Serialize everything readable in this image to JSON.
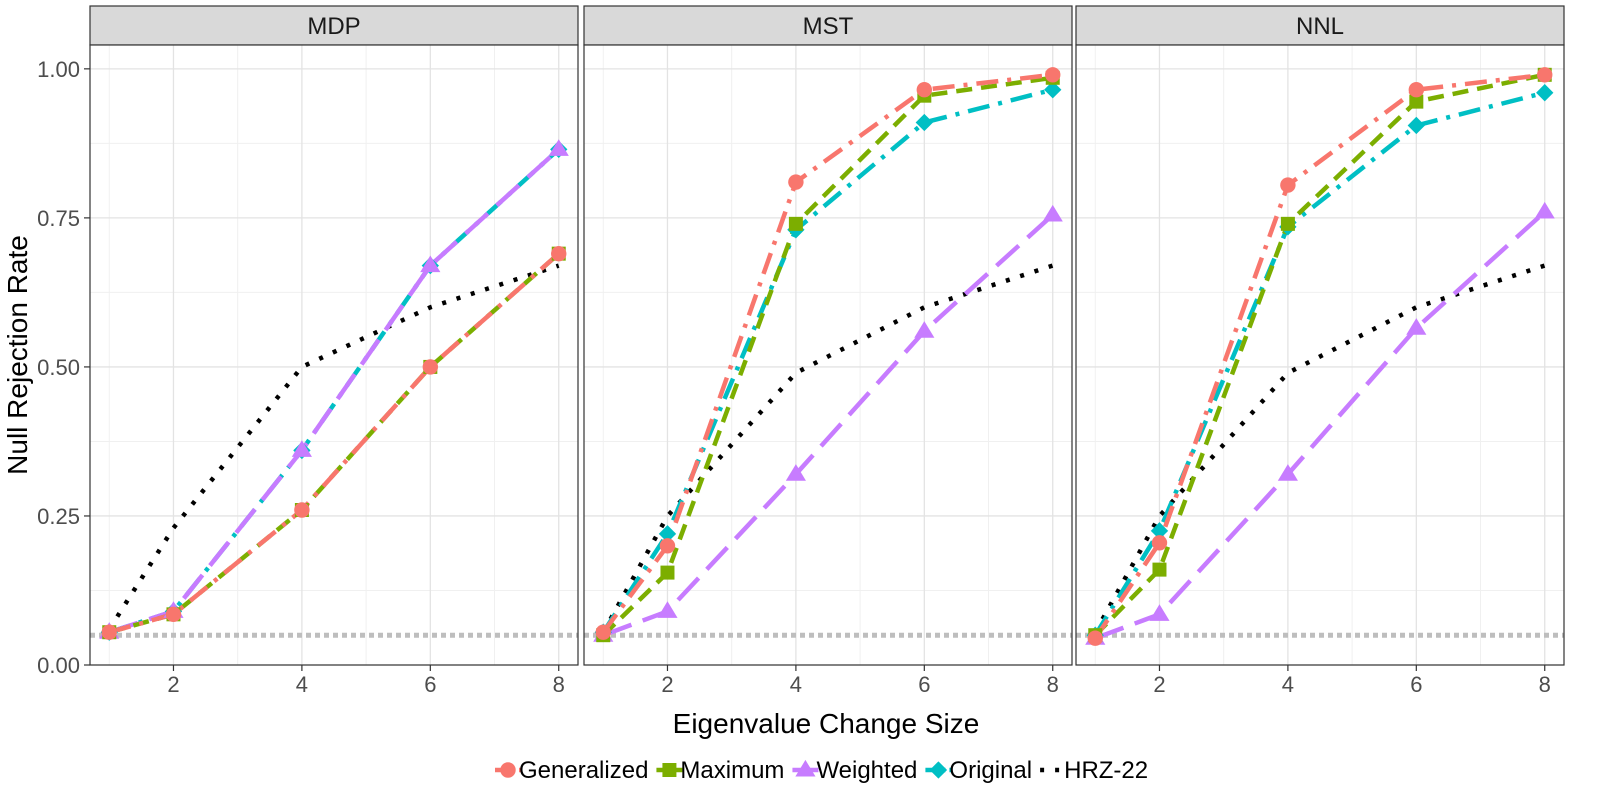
{
  "chart_data": {
    "type": "line",
    "ylabel": "Null Rejection Rate",
    "xlabel": "Eigenvalue Change Size",
    "x": [
      1,
      2,
      4,
      6,
      8
    ],
    "xlim": [
      0.7,
      8.3
    ],
    "ylim": [
      0,
      1.04
    ],
    "xticks": [
      2,
      4,
      6,
      8
    ],
    "xtick_labels": [
      "2",
      "4",
      "6",
      "8"
    ],
    "yticks": [
      0,
      0.25,
      0.5,
      0.75,
      1.0
    ],
    "ytick_labels": [
      "0.00",
      "0.25",
      "0.50",
      "0.75",
      "1.00"
    ],
    "reference_line": 0.05,
    "grid": true,
    "legend_position": "bottom",
    "legend": [
      {
        "name": "Generalized",
        "color": "#F8766D",
        "shape": "circle",
        "dash": "dashdot"
      },
      {
        "name": "Maximum",
        "color": "#7CAE00",
        "shape": "square",
        "dash": "dashed"
      },
      {
        "name": "Weighted",
        "color": "#C77CFF",
        "shape": "triangle",
        "dash": "longdash"
      },
      {
        "name": "Original",
        "color": "#00BFC4",
        "shape": "diamond",
        "dash": "dashdot"
      },
      {
        "name": "HRZ-22",
        "color": "#000000",
        "shape": "none",
        "dash": "dotted"
      }
    ],
    "panels": [
      {
        "name": "MDP",
        "series": [
          {
            "name": "HRZ-22",
            "values": [
              0.06,
              0.23,
              0.5,
              0.6,
              0.67
            ]
          },
          {
            "name": "Original",
            "values": [
              0.055,
              0.09,
              0.36,
              0.67,
              0.865
            ]
          },
          {
            "name": "Weighted",
            "values": [
              0.055,
              0.09,
              0.36,
              0.67,
              0.865
            ]
          },
          {
            "name": "Maximum",
            "values": [
              0.055,
              0.085,
              0.26,
              0.5,
              0.69
            ]
          },
          {
            "name": "Generalized",
            "values": [
              0.055,
              0.085,
              0.26,
              0.5,
              0.69
            ]
          }
        ]
      },
      {
        "name": "MST",
        "series": [
          {
            "name": "HRZ-22",
            "values": [
              0.055,
              0.25,
              0.49,
              0.6,
              0.67
            ]
          },
          {
            "name": "Weighted",
            "values": [
              0.05,
              0.09,
              0.32,
              0.56,
              0.755
            ]
          },
          {
            "name": "Original",
            "values": [
              0.055,
              0.22,
              0.73,
              0.91,
              0.965
            ]
          },
          {
            "name": "Maximum",
            "values": [
              0.05,
              0.155,
              0.74,
              0.955,
              0.985
            ]
          },
          {
            "name": "Generalized",
            "values": [
              0.055,
              0.2,
              0.81,
              0.965,
              0.99
            ]
          }
        ]
      },
      {
        "name": "NNL",
        "series": [
          {
            "name": "HRZ-22",
            "values": [
              0.055,
              0.25,
              0.49,
              0.6,
              0.67
            ]
          },
          {
            "name": "Weighted",
            "values": [
              0.045,
              0.085,
              0.32,
              0.565,
              0.76
            ]
          },
          {
            "name": "Original",
            "values": [
              0.05,
              0.225,
              0.735,
              0.905,
              0.96
            ]
          },
          {
            "name": "Maximum",
            "values": [
              0.05,
              0.16,
              0.74,
              0.945,
              0.99
            ]
          },
          {
            "name": "Generalized",
            "values": [
              0.045,
              0.205,
              0.805,
              0.965,
              0.99
            ]
          }
        ]
      }
    ]
  }
}
